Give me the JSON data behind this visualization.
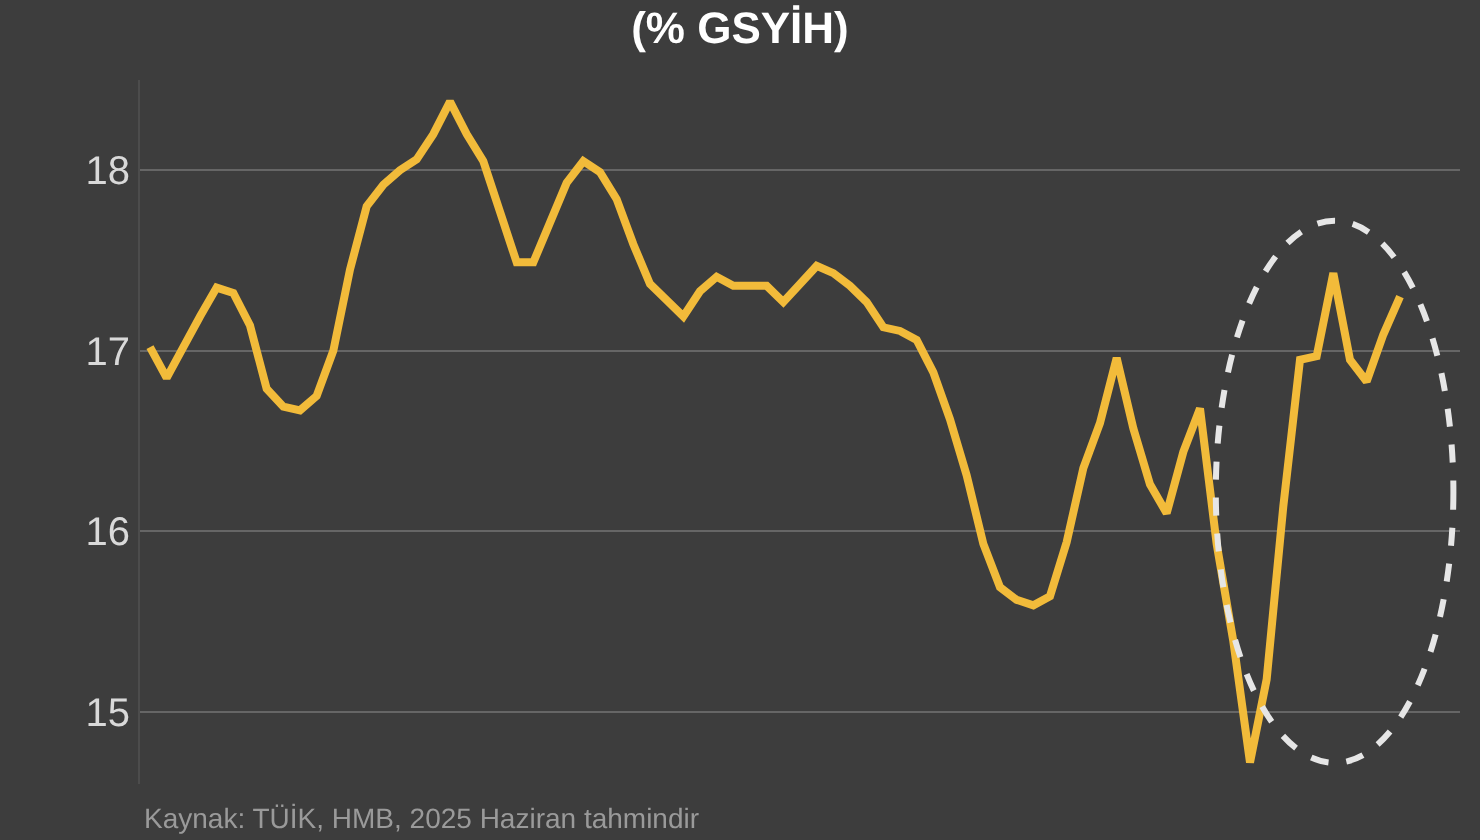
{
  "chart_data": {
    "type": "line",
    "title": "(% GSYİH)",
    "annotations": [
      "Kaynak: TÜİK, HMB, 2025 Haziran tahmindir"
    ],
    "categories": [
      null,
      null,
      null,
      null,
      null,
      null,
      null,
      null,
      null,
      null,
      null,
      null,
      null,
      null,
      null,
      null,
      null,
      null,
      null,
      null,
      null,
      null,
      null,
      null,
      null,
      null,
      null,
      null,
      null,
      null,
      null,
      null,
      null,
      null,
      null,
      null,
      null,
      null,
      null,
      null,
      null,
      null,
      null,
      null,
      null,
      null,
      null,
      null,
      null,
      null,
      null,
      null,
      null,
      null,
      null,
      null,
      null,
      null,
      null,
      null,
      null,
      null,
      null,
      null,
      null,
      null,
      null,
      null,
      null,
      null,
      null,
      null,
      null,
      null,
      null,
      null
    ],
    "series": [
      {
        "color": "#f2bb3a",
        "values": [
          17.02,
          16.85,
          17.02,
          17.19,
          17.35,
          17.32,
          17.14,
          16.79,
          16.69,
          16.67,
          16.75,
          17.0,
          17.45,
          17.8,
          17.92,
          18.0,
          18.06,
          18.2,
          18.38,
          18.2,
          18.05,
          17.77,
          17.49,
          17.49,
          17.71,
          17.93,
          18.05,
          17.99,
          17.84,
          17.59,
          17.37,
          17.28,
          17.19,
          17.33,
          17.41,
          17.36,
          17.36,
          17.36,
          17.27,
          17.37,
          17.47,
          17.43,
          17.36,
          17.27,
          17.13,
          17.11,
          17.06,
          16.88,
          16.62,
          16.31,
          15.93,
          15.69,
          15.62,
          15.59,
          15.64,
          15.94,
          16.35,
          16.6,
          16.96,
          16.57,
          16.26,
          16.1,
          16.44,
          16.68,
          15.93,
          15.39,
          14.72,
          15.18,
          16.14,
          16.95,
          16.97,
          17.43,
          16.95,
          16.83,
          17.09,
          17.3
        ]
      }
    ],
    "ylim": [
      14.6,
      18.5
    ],
    "yticks": [
      15,
      16,
      17,
      18
    ],
    "grid": "y",
    "tick_labels": "y",
    "line_style": "solid",
    "marker": "none"
  }
}
